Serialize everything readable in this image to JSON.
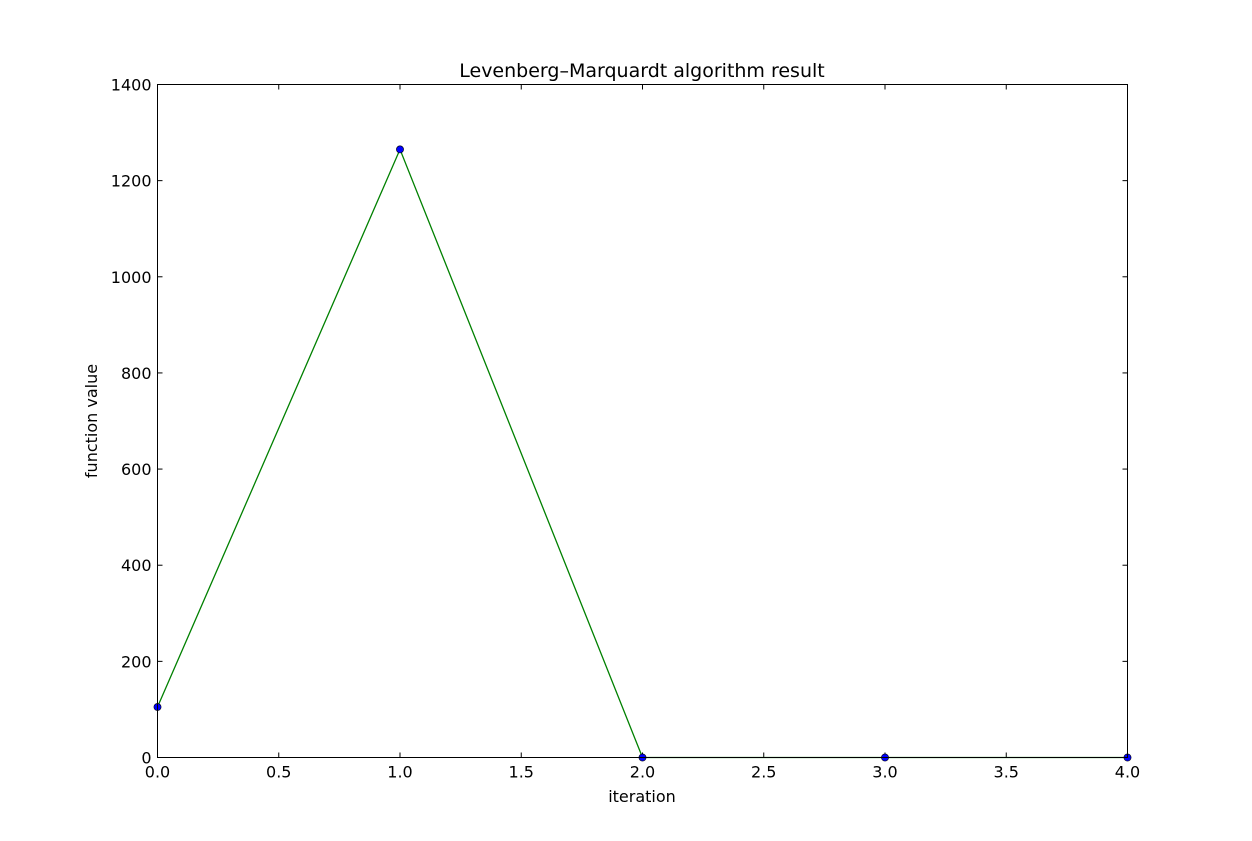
{
  "chart_data": {
    "type": "line",
    "title": "Levenberg–Marquardt algorithm result",
    "xlabel": "iteration",
    "ylabel": "function value",
    "xlim": [
      0,
      4
    ],
    "ylim": [
      0,
      1400
    ],
    "xticks": [
      0,
      0.5,
      1,
      1.5,
      2,
      2.5,
      3,
      3.5,
      4
    ],
    "xtick_labels": [
      "0.0",
      "0.5",
      "1.0",
      "1.5",
      "2.0",
      "2.5",
      "3.0",
      "3.5",
      "4.0"
    ],
    "yticks": [
      0,
      200,
      400,
      600,
      800,
      1000,
      1200,
      1400
    ],
    "ytick_labels": [
      "0",
      "200",
      "400",
      "600",
      "800",
      "1000",
      "1200",
      "1400"
    ],
    "grid": false,
    "series": [
      {
        "x": [
          0,
          1,
          2,
          3,
          4
        ],
        "y": [
          105,
          1265,
          0,
          0,
          0
        ],
        "line_color": "#008000",
        "marker_color": "#0000ff"
      }
    ]
  }
}
